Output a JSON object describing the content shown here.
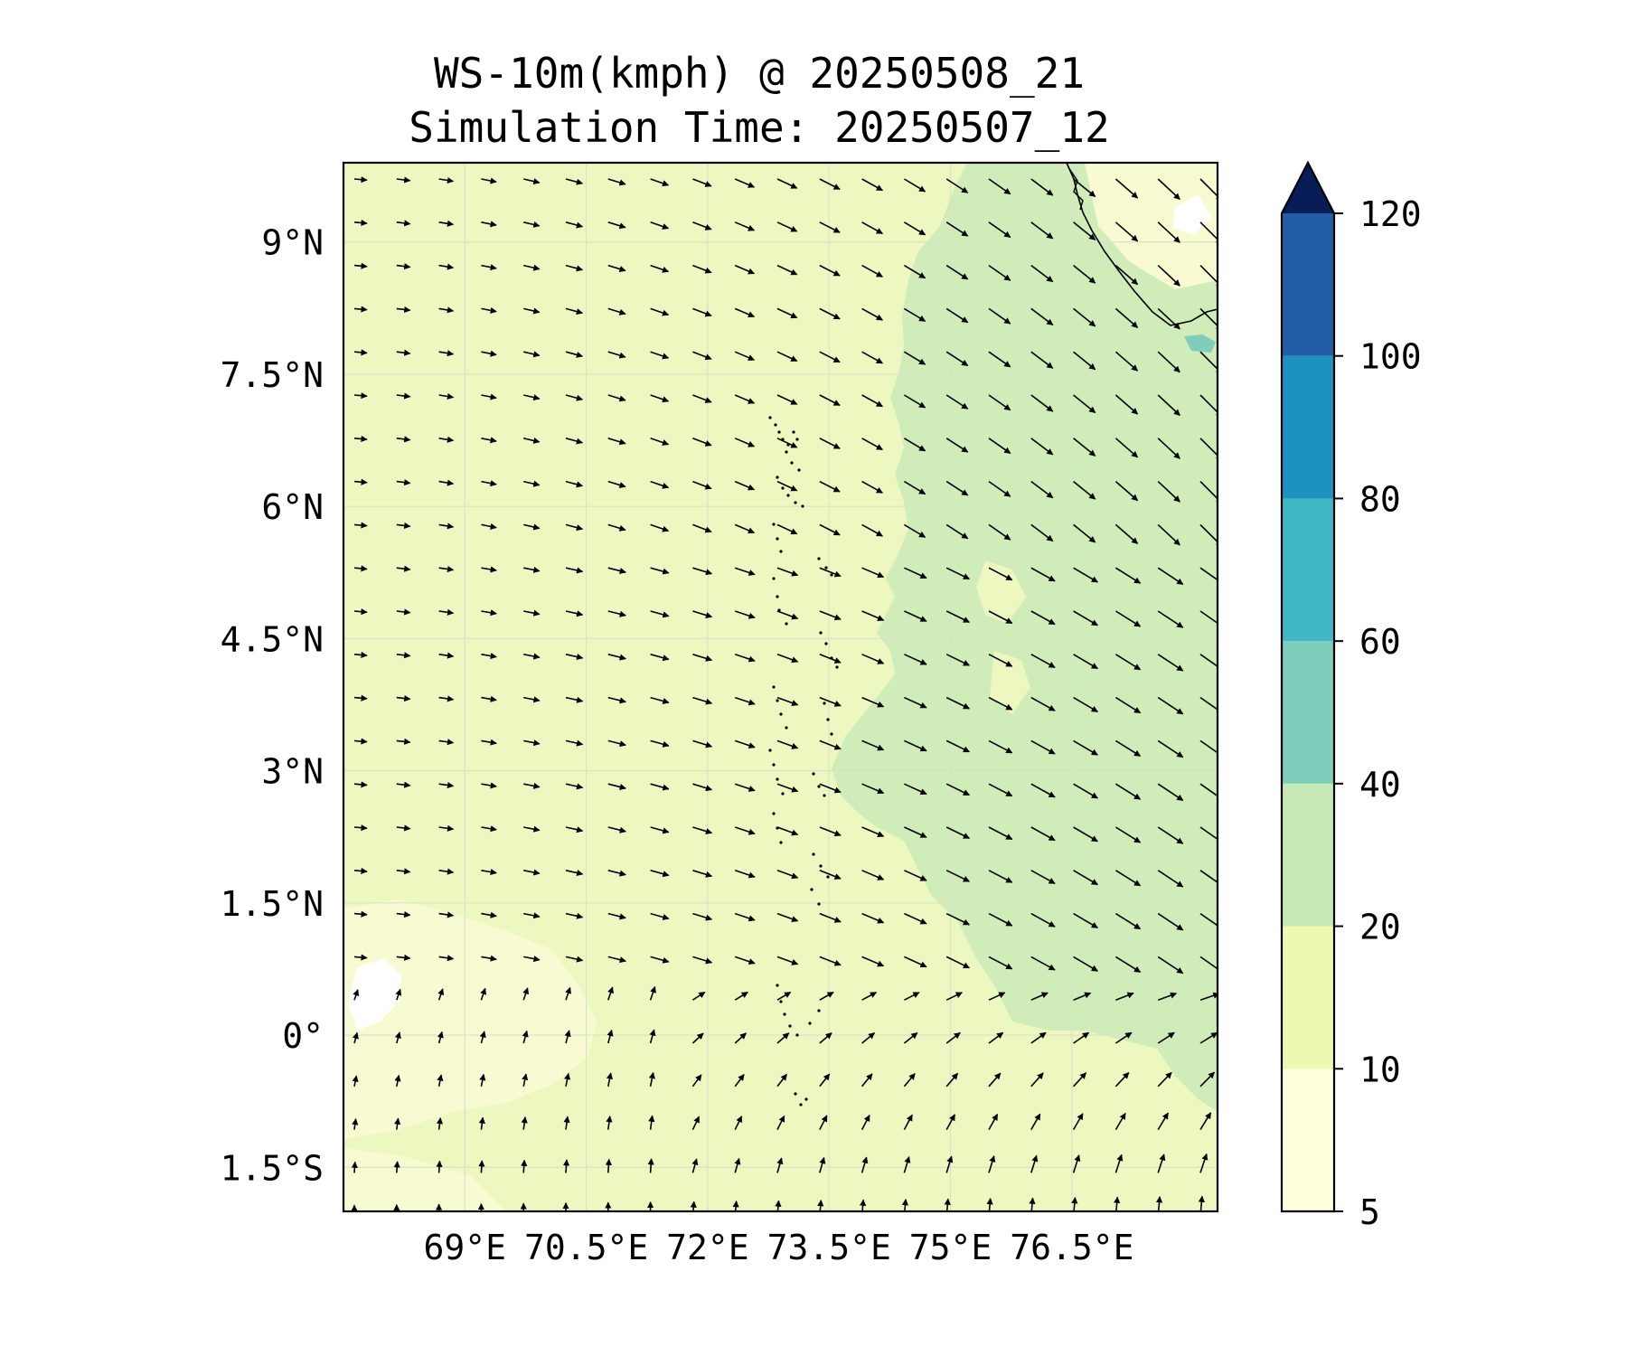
{
  "title_line1": "WS-10m(kmph) @ 20250508_21",
  "title_line2": "Simulation Time: 20250507_12",
  "map": {
    "lon_range": [
      67.5,
      78.3
    ],
    "lat_range": [
      -2.0,
      9.9
    ],
    "lat_ticks": [
      {
        "value": 9.0,
        "label": "9°N"
      },
      {
        "value": 7.5,
        "label": "7.5°N"
      },
      {
        "value": 6.0,
        "label": "6°N"
      },
      {
        "value": 4.5,
        "label": "4.5°N"
      },
      {
        "value": 3.0,
        "label": "3°N"
      },
      {
        "value": 1.5,
        "label": "1.5°N"
      },
      {
        "value": 0.0,
        "label": "0°"
      },
      {
        "value": -1.5,
        "label": "1.5°S"
      }
    ],
    "lon_ticks": [
      {
        "value": 69.0,
        "label": "69°E"
      },
      {
        "value": 70.5,
        "label": "70.5°E"
      },
      {
        "value": 72.0,
        "label": "72°E"
      },
      {
        "value": 73.5,
        "label": "73.5°E"
      },
      {
        "value": 75.0,
        "label": "75°E"
      },
      {
        "value": 76.5,
        "label": "76.5°E"
      }
    ],
    "grid": true,
    "base_fill_color": "#edf8c0"
  },
  "colorbar": {
    "levels": [
      5,
      10,
      20,
      40,
      60,
      80,
      100,
      120
    ],
    "colors": [
      "#ffffd9",
      "#edf8b1",
      "#c7e9b4",
      "#7fcdbb",
      "#41b6c4",
      "#1d91c0",
      "#225ea8",
      "#253494"
    ],
    "extend_color": "#081d58",
    "extend": "max"
  }
}
